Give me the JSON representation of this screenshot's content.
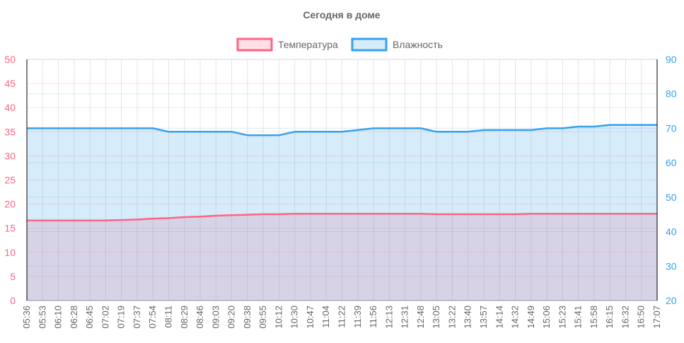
{
  "chart_data": {
    "type": "line",
    "title": "Сегодня в доме",
    "legend_position": "top",
    "grid": true,
    "x": [
      "05:36",
      "05:53",
      "06:10",
      "06:28",
      "06:45",
      "07:02",
      "07:19",
      "07:37",
      "07:54",
      "08:11",
      "08:29",
      "08:46",
      "09:03",
      "09:20",
      "09:38",
      "09:55",
      "10:12",
      "10:30",
      "10:47",
      "11:04",
      "11:22",
      "11:39",
      "11:56",
      "12:13",
      "12:31",
      "12:48",
      "13:05",
      "13:22",
      "13:40",
      "13:57",
      "14:14",
      "14:32",
      "14:49",
      "15:06",
      "15:23",
      "15:41",
      "15:58",
      "16:15",
      "16:32",
      "16:50",
      "17:07"
    ],
    "y_left": {
      "ylim": [
        0,
        50
      ],
      "ticks": [
        0,
        5,
        10,
        15,
        20,
        25,
        30,
        35,
        40,
        45,
        50
      ],
      "color": "#ff6384"
    },
    "y_right": {
      "ylim": [
        20,
        90
      ],
      "ticks": [
        20,
        30,
        40,
        50,
        60,
        70,
        80,
        90
      ],
      "color": "#36a2eb"
    },
    "series": [
      {
        "name": "Температура",
        "axis": "left",
        "color": "#ff6384",
        "fill": "rgba(255,99,132,0.2)",
        "values": [
          16.6,
          16.6,
          16.6,
          16.6,
          16.6,
          16.6,
          16.7,
          16.8,
          17.0,
          17.1,
          17.3,
          17.4,
          17.6,
          17.7,
          17.8,
          17.9,
          17.9,
          18.0,
          18.0,
          18.0,
          18.0,
          18.0,
          18.0,
          18.0,
          18.0,
          18.0,
          17.9,
          17.9,
          17.9,
          17.9,
          17.9,
          17.9,
          18.0,
          18.0,
          18.0,
          18.0,
          18.0,
          18.0,
          18.0,
          18.0,
          18.0
        ]
      },
      {
        "name": "Влажность",
        "axis": "right",
        "color": "#36a2eb",
        "fill": "rgba(54,162,235,0.2)",
        "values": [
          70,
          70,
          70,
          70,
          70,
          70,
          70,
          70,
          70,
          69,
          69,
          69,
          69,
          69,
          68,
          68,
          68,
          69,
          69,
          69,
          69,
          69.5,
          70,
          70,
          70,
          70,
          69,
          69,
          69,
          69.5,
          69.5,
          69.5,
          69.5,
          70,
          70,
          70.5,
          70.5,
          71,
          71,
          71,
          71
        ]
      }
    ]
  }
}
